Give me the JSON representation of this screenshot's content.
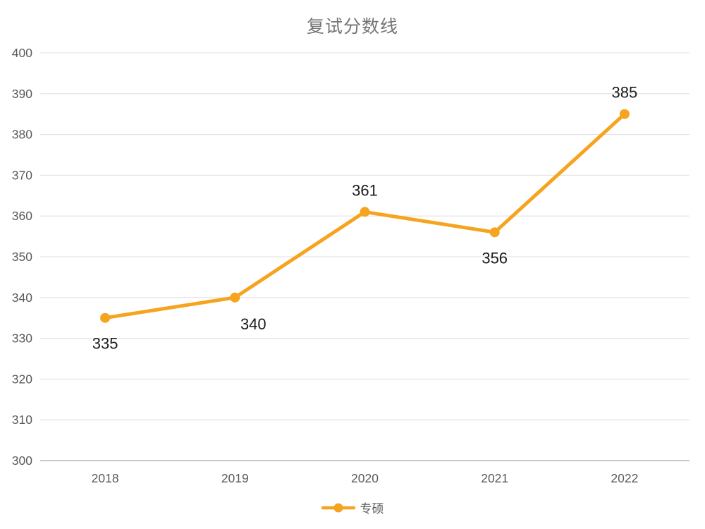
{
  "chart": {
    "title": "复试分数线",
    "legend_label": "专硕",
    "colors": {
      "series_line": "#F6A41F",
      "grid_line": "#E0E0E0",
      "axis_base_line": "#B5B5B5",
      "tick_label": "#5A5A5A",
      "title_text": "#757575",
      "data_label": "#1A1A1A",
      "legend_text": "#595959",
      "background": "#FFFFFF"
    }
  },
  "chart_data": {
    "type": "line",
    "title": "复试分数线",
    "categories": [
      "2018",
      "2019",
      "2020",
      "2021",
      "2022"
    ],
    "series": [
      {
        "name": "专硕",
        "values": [
          335,
          340,
          361,
          356,
          385
        ]
      }
    ],
    "ylim": [
      300,
      400
    ],
    "ytick_step": 10,
    "yticks": [
      300,
      310,
      320,
      330,
      340,
      350,
      360,
      370,
      380,
      390,
      400
    ],
    "grid": true,
    "legend_position": "bottom",
    "data_labels": true,
    "data_label_placement": [
      "below",
      "below-right",
      "above",
      "below",
      "above"
    ]
  }
}
